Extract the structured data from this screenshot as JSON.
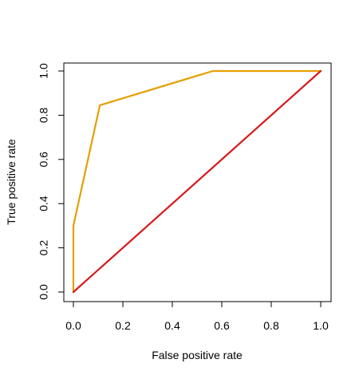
{
  "chart_data": {
    "type": "line",
    "title": "",
    "xlabel": "False positive rate",
    "ylabel": "True positive rate",
    "xlim": [
      0,
      1
    ],
    "ylim": [
      0,
      1
    ],
    "x_ticks": [
      "0.0",
      "0.2",
      "0.4",
      "0.6",
      "0.8",
      "1.0"
    ],
    "y_ticks": [
      "0.0",
      "0.2",
      "0.4",
      "0.6",
      "0.8",
      "1.0"
    ],
    "grid": false,
    "legend": "none",
    "series": [
      {
        "color": "#E69F00",
        "x": [
          0.0,
          0.0,
          0.107,
          0.564,
          1.0
        ],
        "y": [
          0.0,
          0.3,
          0.845,
          1.0,
          1.0
        ]
      },
      {
        "color": "#D7191C",
        "x": [
          0.0,
          1.0
        ],
        "y": [
          0.0,
          1.0
        ]
      }
    ]
  }
}
